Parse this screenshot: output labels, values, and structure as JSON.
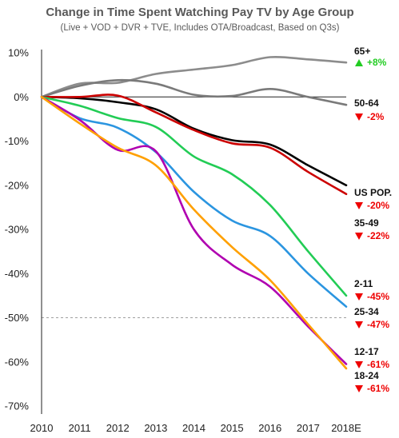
{
  "chart_data": {
    "type": "line",
    "title": "Change in Time Spent Watching Pay TV by Age Group",
    "subtitle": "(Live + VOD + DVR + TVE, Includes OTA/Broadcast, Based on Q3s)",
    "x": [
      "2010",
      "2011",
      "2012",
      "2013",
      "2014",
      "2015",
      "2016",
      "2017",
      "2018E"
    ],
    "ylim": [
      -70,
      10
    ],
    "yticks": [
      "10%",
      "0%",
      "-10%",
      "-20%",
      "-30%",
      "-40%",
      "-50%",
      "-60%",
      "-70%"
    ],
    "reference_line": -50,
    "series": [
      {
        "name": "65+",
        "change": "+8%",
        "direction": "up",
        "color": "#8c8c8c",
        "values": [
          0,
          3,
          3.2,
          5.2,
          6.2,
          7.2,
          9,
          8.5,
          7.8
        ]
      },
      {
        "name": "50-64",
        "change": "-2%",
        "direction": "down",
        "color": "#7a7a7a",
        "values": [
          0,
          2.5,
          3.8,
          3,
          0.5,
          0.2,
          1.8,
          0,
          -1.8
        ]
      },
      {
        "name": "US POP.",
        "change": "-20%",
        "direction": "down",
        "color": "#000000",
        "values": [
          0,
          -0.3,
          -1.2,
          -2.8,
          -7.2,
          -9.8,
          -10.8,
          -15.5,
          -20
        ]
      },
      {
        "name": "35-49",
        "change": "-22%",
        "direction": "down",
        "color": "#cc0000",
        "values": [
          0,
          0,
          0.3,
          -3.5,
          -7.5,
          -10.5,
          -11.5,
          -17,
          -22
        ]
      },
      {
        "name": "2-11",
        "change": "-45%",
        "direction": "down",
        "color": "#22cc55",
        "values": [
          0,
          -2,
          -4.8,
          -6.8,
          -13.5,
          -17.5,
          -24.5,
          -35,
          -45
        ]
      },
      {
        "name": "25-34",
        "change": "-47%",
        "direction": "down",
        "color": "#2b95e0",
        "values": [
          0,
          -4.8,
          -7,
          -12.5,
          -21.5,
          -28,
          -31.5,
          -40,
          -47.5
        ]
      },
      {
        "name": "12-17",
        "change": "-61%",
        "direction": "down",
        "color": "#b000b0",
        "values": [
          0,
          -5.2,
          -12,
          -12.3,
          -30,
          -38,
          -43,
          -52,
          -60.5
        ]
      },
      {
        "name": "18-24",
        "change": "-61%",
        "direction": "down",
        "color": "#ffa000",
        "values": [
          0,
          -6,
          -11.5,
          -15.5,
          -25.5,
          -34,
          -41.5,
          -51.5,
          -61.5
        ]
      }
    ],
    "colors": {
      "up": "#22cc22",
      "down": "#ee0000"
    }
  }
}
